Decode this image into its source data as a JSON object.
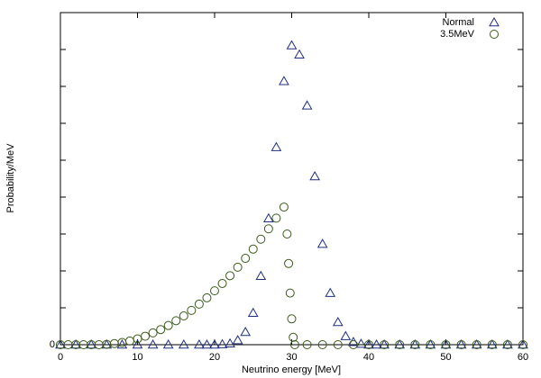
{
  "chart_data": {
    "type": "scatter",
    "xlabel": "Neutrino energy [MeV]",
    "ylabel": "Probability/MeV",
    "xlim": [
      0,
      60
    ],
    "xticks": [
      0,
      10,
      20,
      30,
      40,
      50,
      60
    ],
    "ylim": [
      0,
      9
    ],
    "yticks": [
      0
    ],
    "y_unlabeled_ticks": [
      1,
      2,
      3,
      4,
      5,
      6,
      7,
      8
    ],
    "legend": "upper right",
    "series": [
      {
        "name": "Normal",
        "color": "#1f2f80",
        "marker": "triangle",
        "x": [
          0,
          2,
          4,
          6,
          8,
          10,
          12,
          14,
          16,
          18,
          19,
          20,
          21,
          22,
          23,
          24,
          25,
          26,
          27,
          28,
          29,
          30,
          31,
          32,
          33,
          34,
          35,
          36,
          37,
          38,
          39,
          40,
          41,
          42,
          44,
          46,
          48,
          50,
          52,
          54,
          56,
          58,
          60
        ],
        "values": [
          0,
          0,
          0,
          0,
          0,
          0,
          0,
          0,
          0,
          0,
          0,
          0,
          0.01,
          0.03,
          0.12,
          0.34,
          0.86,
          1.86,
          3.42,
          5.35,
          7.14,
          8.11,
          7.86,
          6.48,
          4.56,
          2.73,
          1.4,
          0.61,
          0.23,
          0.07,
          0.02,
          0,
          0,
          0,
          0,
          0,
          0,
          0,
          0,
          0,
          0,
          0,
          0
        ]
      },
      {
        "name": "3.5MeV",
        "color": "#3a5a1a",
        "marker": "circle",
        "x": [
          0,
          1,
          2,
          3,
          4,
          5,
          6,
          7,
          8,
          9,
          10,
          11,
          12,
          13,
          14,
          15,
          16,
          17,
          18,
          19,
          20,
          21,
          22,
          23,
          24,
          25,
          26,
          27,
          28,
          29,
          29.4,
          29.6,
          29.8,
          30,
          30.2,
          30.4,
          32,
          34,
          36,
          38,
          40,
          42,
          44,
          46,
          48,
          50,
          52,
          54,
          56,
          58,
          60
        ],
        "values": [
          0,
          0,
          0,
          0,
          0,
          0,
          0.01,
          0.03,
          0.06,
          0.1,
          0.16,
          0.23,
          0.32,
          0.41,
          0.52,
          0.65,
          0.78,
          0.93,
          1.1,
          1.27,
          1.46,
          1.66,
          1.87,
          2.1,
          2.34,
          2.59,
          2.86,
          3.14,
          3.43,
          3.73,
          3.0,
          2.2,
          1.4,
          0.7,
          0.2,
          0,
          0,
          0,
          0,
          0,
          0,
          0,
          0,
          0,
          0,
          0,
          0,
          0,
          0,
          0,
          0
        ]
      }
    ]
  }
}
